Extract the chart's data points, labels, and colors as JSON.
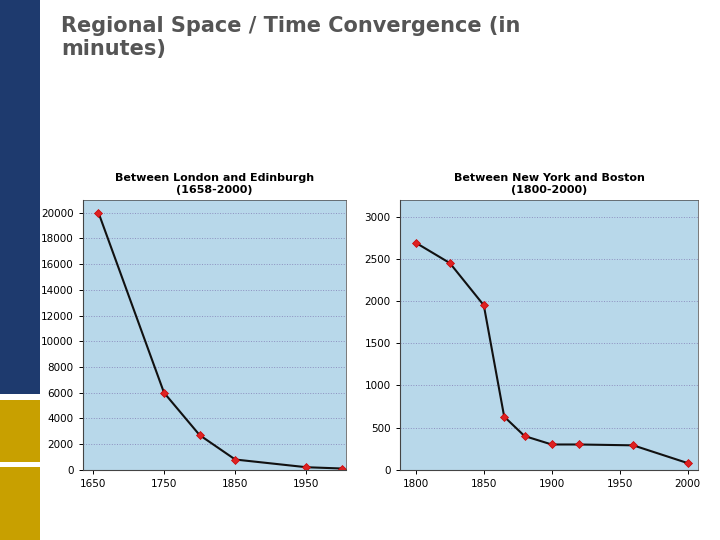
{
  "title": "Regional Space / Time Convergence (in\nminutes)",
  "chart1_title_line1": "Between London and Edinburgh",
  "chart1_title_line2": "(1658-2000)",
  "chart2_title_line1": "Between New York and Boston",
  "chart2_title_line2": "(1800-2000)",
  "chart1_x": [
    1658,
    1750,
    1800,
    1850,
    1950,
    2000
  ],
  "chart1_y": [
    20000,
    6000,
    2700,
    800,
    200,
    100
  ],
  "chart1_xlim": [
    1636,
    2005
  ],
  "chart1_xticks": [
    1650,
    1750,
    1850,
    1950
  ],
  "chart1_ylim": [
    0,
    21000
  ],
  "chart1_yticks": [
    0,
    2000,
    4000,
    6000,
    8000,
    10000,
    12000,
    14000,
    16000,
    18000,
    20000
  ],
  "chart2_x": [
    1800,
    1825,
    1850,
    1865,
    1880,
    1900,
    1920,
    1960,
    2000
  ],
  "chart2_y": [
    2690,
    2450,
    1950,
    630,
    400,
    300,
    300,
    290,
    80
  ],
  "chart2_xlim": [
    1788,
    2008
  ],
  "chart2_xticks": [
    1800,
    1850,
    1900,
    1950,
    2000
  ],
  "chart2_ylim": [
    0,
    3200
  ],
  "chart2_yticks": [
    0,
    500,
    1000,
    1500,
    2000,
    2500,
    3000
  ],
  "line_color": "#111111",
  "marker_color": "#cc0000",
  "marker_face": "#dd2222",
  "bg_color": "#b8d8ea",
  "fig_bg": "#ffffff",
  "title_color": "#555555",
  "left_bar_blue": "#1e3a6e",
  "left_bar_gold": "#c8a000",
  "grid_color": "#8888bb",
  "title_fontsize": 15,
  "subtitle_fontsize": 8,
  "tick_fontsize": 7.5
}
